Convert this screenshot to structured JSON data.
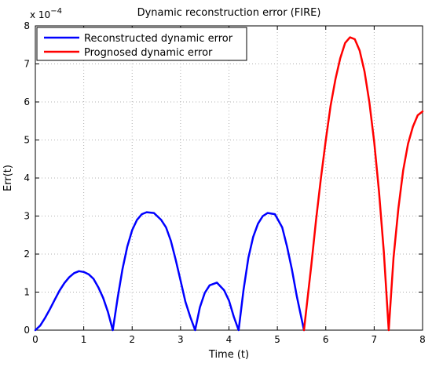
{
  "chart_data": {
    "type": "line",
    "title": "Dynamic reconstruction error (FIRE)",
    "xlabel": "Time (t)",
    "ylabel": "Err(t)",
    "xlim": [
      0,
      8
    ],
    "ylim": [
      0,
      8
    ],
    "y_exponent_label": "x 10",
    "y_exponent_power": "−4",
    "x_ticks": [
      "0",
      "1",
      "2",
      "3",
      "4",
      "5",
      "6",
      "7",
      "8"
    ],
    "y_ticks": [
      "0",
      "1",
      "2",
      "3",
      "4",
      "5",
      "6",
      "7",
      "8"
    ],
    "grid": true,
    "legend_position": "top-left",
    "series": [
      {
        "name": "Reconstructed dynamic error",
        "color": "#0000ff",
        "x": [
          0,
          0.1,
          0.2,
          0.3,
          0.4,
          0.5,
          0.6,
          0.7,
          0.8,
          0.9,
          1.0,
          1.1,
          1.2,
          1.3,
          1.4,
          1.5,
          1.6,
          1.7,
          1.8,
          1.9,
          2.0,
          2.1,
          2.2,
          2.3,
          2.45,
          2.6,
          2.7,
          2.8,
          2.9,
          3.0,
          3.1,
          3.2,
          3.3,
          3.4,
          3.5,
          3.6,
          3.75,
          3.9,
          4.0,
          4.1,
          4.2,
          4.3,
          4.4,
          4.5,
          4.6,
          4.7,
          4.8,
          4.95,
          5.1,
          5.2,
          5.3,
          5.4,
          5.55
        ],
        "y": [
          0,
          0.12,
          0.32,
          0.55,
          0.8,
          1.04,
          1.24,
          1.39,
          1.5,
          1.55,
          1.53,
          1.47,
          1.35,
          1.13,
          0.85,
          0.48,
          0,
          0.85,
          1.6,
          2.2,
          2.63,
          2.9,
          3.05,
          3.1,
          3.08,
          2.9,
          2.7,
          2.35,
          1.85,
          1.3,
          0.75,
          0.35,
          0,
          0.6,
          0.98,
          1.18,
          1.25,
          1.05,
          0.78,
          0.35,
          0,
          1.05,
          1.9,
          2.45,
          2.8,
          3.0,
          3.08,
          3.05,
          2.7,
          2.2,
          1.6,
          0.9,
          0
        ]
      },
      {
        "name": "Prognosed dynamic error",
        "color": "#ff0000",
        "x": [
          5.55,
          5.7,
          5.8,
          5.9,
          6.0,
          6.1,
          6.2,
          6.3,
          6.4,
          6.5,
          6.6,
          6.7,
          6.8,
          6.9,
          7.0,
          7.1,
          7.2,
          7.3,
          7.4,
          7.5,
          7.6,
          7.7,
          7.8,
          7.9,
          8.0
        ],
        "y": [
          0,
          1.7,
          2.9,
          4.0,
          5.0,
          5.9,
          6.6,
          7.15,
          7.55,
          7.7,
          7.65,
          7.35,
          6.8,
          6.0,
          4.95,
          3.65,
          2.05,
          0,
          1.9,
          3.2,
          4.2,
          4.9,
          5.35,
          5.65,
          5.75
        ]
      }
    ]
  }
}
